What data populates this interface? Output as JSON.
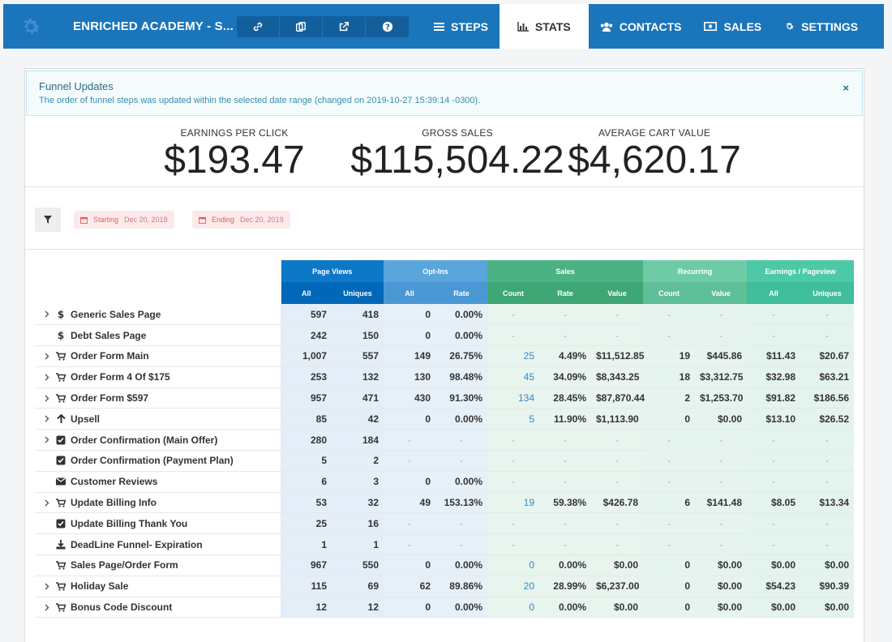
{
  "app": {
    "funnel_title": "ENRICHED ACADEMY - S...",
    "tools": [
      "link-icon",
      "copy-icon",
      "external-link-icon",
      "help-icon"
    ],
    "tabs": [
      {
        "label": "STEPS",
        "icon": "list-icon",
        "active": false
      },
      {
        "label": "STATS",
        "icon": "bar-chart-icon",
        "active": true
      },
      {
        "label": "CONTACTS",
        "icon": "users-icon",
        "active": false
      },
      {
        "label": "SALES",
        "icon": "money-icon",
        "active": false
      },
      {
        "label": "SETTINGS",
        "icon": "gear-icon",
        "active": false
      }
    ]
  },
  "alert": {
    "title": "Funnel Updates",
    "body": "The order of funnel steps was updated within the selected date range (changed on 2019-10-27 15:39:14 -0300).",
    "close": "×"
  },
  "kpis": [
    {
      "label": "EARNINGS PER CLICK",
      "value": "$193.47"
    },
    {
      "label": "GROSS SALES",
      "value": "$115,504.22"
    },
    {
      "label": "AVERAGE CART VALUE",
      "value": "$4,620.17"
    }
  ],
  "filters": {
    "starting_label": "Starting",
    "starting_date": "Dec 20, 2018",
    "ending_label": "Ending",
    "ending_date": "Dec 20, 2019"
  },
  "colors": {
    "nav": "#1b75bb",
    "page_views": "#0e78c8",
    "opt_ins": "#5aa5dc",
    "sales": "#4bb283",
    "recurring": "#6fcba6",
    "earnings": "#4ec9a7"
  },
  "table": {
    "groups": [
      "Page Views",
      "Opt-Ins",
      "Sales",
      "Recurring",
      "Earnings / Pageview"
    ],
    "subheaders": [
      "All",
      "Uniques",
      "All",
      "Rate",
      "Count",
      "Rate",
      "Value",
      "Count",
      "Value",
      "All",
      "Uniques"
    ],
    "rows": [
      {
        "expand": true,
        "icon": "dollar-icon",
        "name": "Generic Sales Page",
        "cells": [
          "597",
          "418",
          "0",
          "0.00%",
          "-",
          "-",
          "-",
          "-",
          "-",
          "-",
          "-"
        ]
      },
      {
        "expand": false,
        "icon": "dollar-icon",
        "name": "Debt Sales Page",
        "cells": [
          "242",
          "150",
          "0",
          "0.00%",
          "-",
          "-",
          "-",
          "-",
          "-",
          "-",
          "-"
        ]
      },
      {
        "expand": true,
        "icon": "cart-icon",
        "name": "Order Form Main",
        "cells": [
          "1,007",
          "557",
          "149",
          "26.75%",
          "25",
          "4.49%",
          "$11,512.85",
          "19",
          "$445.86",
          "$11.43",
          "$20.67"
        ]
      },
      {
        "expand": true,
        "icon": "cart-icon",
        "name": "Order Form 4 Of $175",
        "cells": [
          "253",
          "132",
          "130",
          "98.48%",
          "45",
          "34.09%",
          "$8,343.25",
          "18",
          "$3,312.75",
          "$32.98",
          "$63.21"
        ]
      },
      {
        "expand": true,
        "icon": "cart-icon",
        "name": "Order Form $597",
        "cells": [
          "957",
          "471",
          "430",
          "91.30%",
          "134",
          "28.45%",
          "$87,870.44",
          "2",
          "$1,253.70",
          "$91.82",
          "$186.56"
        ]
      },
      {
        "expand": true,
        "icon": "arrow-up-icon",
        "name": "Upsell",
        "cells": [
          "85",
          "42",
          "0",
          "0.00%",
          "5",
          "11.90%",
          "$1,113.90",
          "0",
          "$0.00",
          "$13.10",
          "$26.52"
        ]
      },
      {
        "expand": true,
        "icon": "check-square-icon",
        "name": "Order Confirmation (Main Offer)",
        "cells": [
          "280",
          "184",
          "-",
          "-",
          "-",
          "-",
          "-",
          "-",
          "-",
          "-",
          "-"
        ]
      },
      {
        "expand": false,
        "icon": "check-square-icon",
        "name": "Order Confirmation (Payment Plan)",
        "cells": [
          "5",
          "2",
          "-",
          "-",
          "-",
          "-",
          "-",
          "-",
          "-",
          "-",
          "-"
        ]
      },
      {
        "expand": false,
        "icon": "envelope-icon",
        "name": "Customer Reviews",
        "cells": [
          "6",
          "3",
          "0",
          "0.00%",
          "-",
          "-",
          "-",
          "-",
          "-",
          "-",
          "-"
        ]
      },
      {
        "expand": true,
        "icon": "cart-icon",
        "name": "Update Billing Info",
        "cells": [
          "53",
          "32",
          "49",
          "153.13%",
          "19",
          "59.38%",
          "$426.78",
          "6",
          "$141.48",
          "$8.05",
          "$13.34"
        ]
      },
      {
        "expand": false,
        "icon": "check-square-icon",
        "name": "Update Billing Thank You",
        "cells": [
          "25",
          "16",
          "-",
          "-",
          "-",
          "-",
          "-",
          "-",
          "-",
          "-",
          "-"
        ]
      },
      {
        "expand": false,
        "icon": "download-icon",
        "name": "DeadLine Funnel- Expiration",
        "cells": [
          "1",
          "1",
          "-",
          "-",
          "-",
          "-",
          "-",
          "-",
          "-",
          "-",
          "-"
        ]
      },
      {
        "expand": false,
        "icon": "cart-icon",
        "name": "Sales Page/Order Form",
        "cells": [
          "967",
          "550",
          "0",
          "0.00%",
          "0",
          "0.00%",
          "$0.00",
          "0",
          "$0.00",
          "$0.00",
          "$0.00"
        ]
      },
      {
        "expand": true,
        "icon": "cart-icon",
        "name": "Holiday Sale",
        "cells": [
          "115",
          "69",
          "62",
          "89.86%",
          "20",
          "28.99%",
          "$6,237.00",
          "0",
          "$0.00",
          "$54.23",
          "$90.39"
        ]
      },
      {
        "expand": true,
        "icon": "cart-icon",
        "name": "Bonus Code Discount",
        "cells": [
          "12",
          "12",
          "0",
          "0.00%",
          "0",
          "0.00%",
          "$0.00",
          "0",
          "$0.00",
          "$0.00",
          "$0.00"
        ]
      }
    ]
  }
}
